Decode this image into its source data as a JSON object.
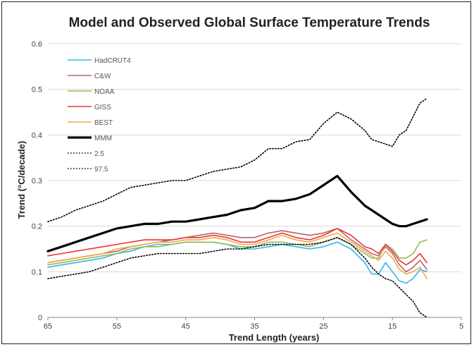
{
  "chart_data": {
    "type": "line",
    "title": "Model and Observed Global Surface Temperature Trends",
    "xlabel": "Trend Length (years)",
    "ylabel": "Trend (°C/decade)",
    "xlim": [
      65,
      5
    ],
    "ylim": [
      0,
      0.6
    ],
    "x_reversed": true,
    "xticks": [
      "65",
      "55",
      "45",
      "35",
      "25",
      "15",
      "5"
    ],
    "yticks": [
      "0",
      "0.1",
      "0.2",
      "0.3",
      "0.4",
      "0.5",
      "0.6"
    ],
    "grid": "horizontal",
    "legend": "top-left",
    "x": [
      65,
      63,
      61,
      59,
      57,
      55,
      53,
      51,
      49,
      47,
      45,
      43,
      41,
      39,
      37,
      35,
      33,
      31,
      29,
      27,
      25,
      23,
      21,
      19,
      18,
      17,
      16,
      15,
      14,
      13,
      12,
      11,
      10
    ],
    "series": [
      {
        "name": "HadCRUT4",
        "color": "#33b5ee",
        "width": 1.6,
        "dash": "",
        "values": [
          0.11,
          0.115,
          0.12,
          0.125,
          0.13,
          0.14,
          0.145,
          0.155,
          0.16,
          0.16,
          0.165,
          0.165,
          0.165,
          0.16,
          0.15,
          0.15,
          0.155,
          0.16,
          0.155,
          0.15,
          0.155,
          0.165,
          0.15,
          0.12,
          0.095,
          0.095,
          0.12,
          0.1,
          0.08,
          0.075,
          0.085,
          0.105,
          0.1
        ]
      },
      {
        "name": "C&W",
        "color": "#b06868",
        "width": 1.6,
        "dash": "",
        "values": [
          0.12,
          0.125,
          0.13,
          0.135,
          0.14,
          0.145,
          0.155,
          0.16,
          0.165,
          0.17,
          0.175,
          0.18,
          0.185,
          0.18,
          0.175,
          0.175,
          0.185,
          0.19,
          0.185,
          0.18,
          0.185,
          0.195,
          0.17,
          0.15,
          0.14,
          0.135,
          0.155,
          0.14,
          0.115,
          0.1,
          0.11,
          0.125,
          0.105
        ]
      },
      {
        "name": "NOAA",
        "color": "#96bb54",
        "width": 1.6,
        "dash": "",
        "values": [
          0.115,
          0.12,
          0.125,
          0.13,
          0.135,
          0.14,
          0.15,
          0.155,
          0.155,
          0.16,
          0.165,
          0.165,
          0.165,
          0.16,
          0.155,
          0.155,
          0.165,
          0.165,
          0.16,
          0.155,
          0.165,
          0.175,
          0.16,
          0.14,
          0.13,
          0.13,
          0.16,
          0.15,
          0.13,
          0.13,
          0.14,
          0.165,
          0.17
        ]
      },
      {
        "name": "GISS",
        "color": "#ee3333",
        "width": 1.6,
        "dash": "",
        "values": [
          0.135,
          0.14,
          0.145,
          0.15,
          0.155,
          0.16,
          0.165,
          0.17,
          0.17,
          0.17,
          0.175,
          0.175,
          0.18,
          0.175,
          0.165,
          0.165,
          0.175,
          0.185,
          0.175,
          0.17,
          0.18,
          0.195,
          0.18,
          0.155,
          0.15,
          0.14,
          0.16,
          0.145,
          0.125,
          0.115,
          0.125,
          0.14,
          0.12
        ]
      },
      {
        "name": "BEST",
        "color": "#f5a54e",
        "width": 1.6,
        "dash": "",
        "values": [
          0.12,
          0.125,
          0.13,
          0.135,
          0.14,
          0.15,
          0.155,
          0.16,
          0.165,
          0.165,
          0.17,
          0.17,
          0.175,
          0.17,
          0.16,
          0.16,
          0.17,
          0.18,
          0.17,
          0.165,
          0.175,
          0.185,
          0.165,
          0.145,
          0.135,
          0.125,
          0.145,
          0.13,
          0.105,
          0.095,
          0.1,
          0.11,
          0.085
        ]
      },
      {
        "name": "MMM",
        "color": "#000000",
        "width": 3.2,
        "dash": "",
        "values": [
          0.145,
          0.155,
          0.165,
          0.175,
          0.185,
          0.195,
          0.2,
          0.205,
          0.205,
          0.21,
          0.21,
          0.215,
          0.22,
          0.225,
          0.235,
          0.24,
          0.255,
          0.255,
          0.26,
          0.27,
          0.29,
          0.31,
          0.275,
          0.245,
          0.235,
          0.225,
          0.215,
          0.205,
          0.2,
          0.2,
          0.205,
          0.21,
          0.215
        ]
      },
      {
        "name": "2.5",
        "color": "#000000",
        "width": 1.6,
        "dash": "1.5,2.5",
        "values": [
          0.085,
          0.09,
          0.095,
          0.1,
          0.11,
          0.12,
          0.13,
          0.135,
          0.14,
          0.14,
          0.14,
          0.14,
          0.145,
          0.15,
          0.15,
          0.155,
          0.16,
          0.16,
          0.16,
          0.16,
          0.165,
          0.175,
          0.16,
          0.13,
          0.11,
          0.095,
          0.085,
          0.08,
          0.065,
          0.05,
          0.035,
          0.01,
          0.0
        ]
      },
      {
        "name": "97.5",
        "color": "#000000",
        "width": 1.6,
        "dash": "1.5,2.5",
        "values": [
          0.21,
          0.22,
          0.235,
          0.245,
          0.255,
          0.27,
          0.285,
          0.29,
          0.295,
          0.3,
          0.3,
          0.31,
          0.32,
          0.325,
          0.33,
          0.345,
          0.37,
          0.37,
          0.385,
          0.39,
          0.425,
          0.45,
          0.435,
          0.41,
          0.39,
          0.385,
          0.38,
          0.375,
          0.4,
          0.41,
          0.44,
          0.47,
          0.48
        ]
      }
    ]
  }
}
